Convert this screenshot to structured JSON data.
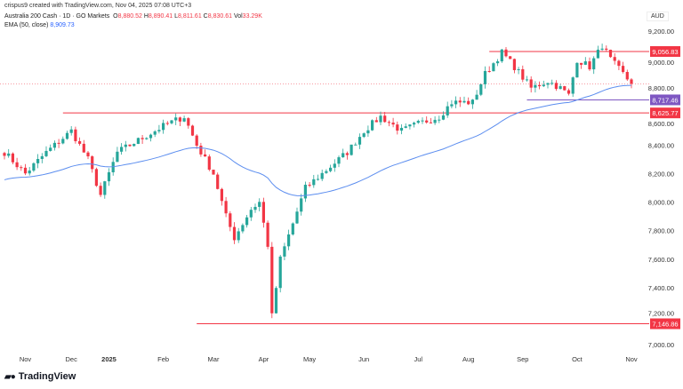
{
  "header": {
    "credit": "crispus9 created with TradingView.com, Nov 04, 2025 07:08 UTC+3"
  },
  "legend": {
    "symbol": "Australia 200 Cash · 1D · GO Markets",
    "o_label": "O",
    "o": "8,880.52",
    "h_label": "H",
    "h": "8,890.41",
    "l_label": "L",
    "l": "8,811.61",
    "c_label": "C",
    "c": "8,830.61",
    "vol_label": "Vol",
    "vol": "33.29K",
    "ema_label": "EMA (50, close)",
    "ema": "8,909.73"
  },
  "currency": "AUD",
  "logo": "TradingView",
  "colors": {
    "up": "#26a69a",
    "down": "#f23645",
    "ema": "#5b8def",
    "support": "#7e57c2"
  },
  "chart_data": {
    "type": "candlestick",
    "title": "Australia 200 Cash · 1D",
    "ylim": [
      6950,
      9300
    ],
    "yticks": [
      7000,
      7200,
      7400,
      7600,
      7800,
      8000,
      8200,
      8400,
      8600,
      8800,
      9000,
      9200
    ],
    "ytick_labels": [
      "7,000.00",
      "7,200.00",
      "7,400.00",
      "7,600.00",
      "7,800.00",
      "8,000.00",
      "8,200.00",
      "8,400.00",
      "8,600.00",
      "8,800.00",
      "9,000.00",
      "9,200.00"
    ],
    "xticks": [
      {
        "label": "Nov",
        "day": 5
      },
      {
        "label": "Dec",
        "day": 16
      },
      {
        "label": "2025",
        "day": 25
      },
      {
        "label": "Feb",
        "day": 38
      },
      {
        "label": "Mar",
        "day": 50
      },
      {
        "label": "Apr",
        "day": 62
      },
      {
        "label": "May",
        "day": 73
      },
      {
        "label": "Jun",
        "day": 86
      },
      {
        "label": "Jul",
        "day": 99
      },
      {
        "label": "Aug",
        "day": 111
      },
      {
        "label": "Sep",
        "day": 124
      },
      {
        "label": "Oct",
        "day": 137
      },
      {
        "label": "Nov",
        "day": 150
      }
    ],
    "close_keyframes": [
      [
        0,
        8350
      ],
      [
        5,
        8200
      ],
      [
        10,
        8350
      ],
      [
        16,
        8500
      ],
      [
        20,
        8300
      ],
      [
        23,
        8050
      ],
      [
        27,
        8350
      ],
      [
        33,
        8450
      ],
      [
        39,
        8550
      ],
      [
        43,
        8600
      ],
      [
        46,
        8400
      ],
      [
        50,
        8200
      ],
      [
        53,
        7900
      ],
      [
        55,
        7750
      ],
      [
        59,
        7950
      ],
      [
        61,
        8000
      ],
      [
        63,
        7700
      ],
      [
        64,
        7200
      ],
      [
        66,
        7600
      ],
      [
        69,
        7850
      ],
      [
        72,
        8100
      ],
      [
        78,
        8250
      ],
      [
        82,
        8350
      ],
      [
        86,
        8500
      ],
      [
        90,
        8600
      ],
      [
        95,
        8500
      ],
      [
        99,
        8550
      ],
      [
        104,
        8600
      ],
      [
        107,
        8700
      ],
      [
        112,
        8700
      ],
      [
        115,
        8900
      ],
      [
        119,
        9050
      ],
      [
        122,
        8950
      ],
      [
        126,
        8800
      ],
      [
        130,
        8850
      ],
      [
        133,
        8800
      ],
      [
        135,
        8750
      ],
      [
        137,
        9000
      ],
      [
        140,
        8950
      ],
      [
        143,
        9100
      ],
      [
        145,
        9000
      ],
      [
        148,
        8900
      ],
      [
        150,
        8830
      ]
    ],
    "levels": [
      {
        "value": 9056.83,
        "label": "9,056.83",
        "from_day": 116,
        "color": "#f23645"
      },
      {
        "value": 8717.46,
        "label": "8,717.46",
        "from_day": 125,
        "color": "#7e57c2"
      },
      {
        "value": 8625.77,
        "label": "8,625.77",
        "from_day": 14,
        "color": "#f23645"
      },
      {
        "value": 7146.86,
        "label": "7,146.86",
        "from_day": 46,
        "color": "#f23645"
      }
    ],
    "last_price": 8830.61,
    "ema_period": 50
  }
}
